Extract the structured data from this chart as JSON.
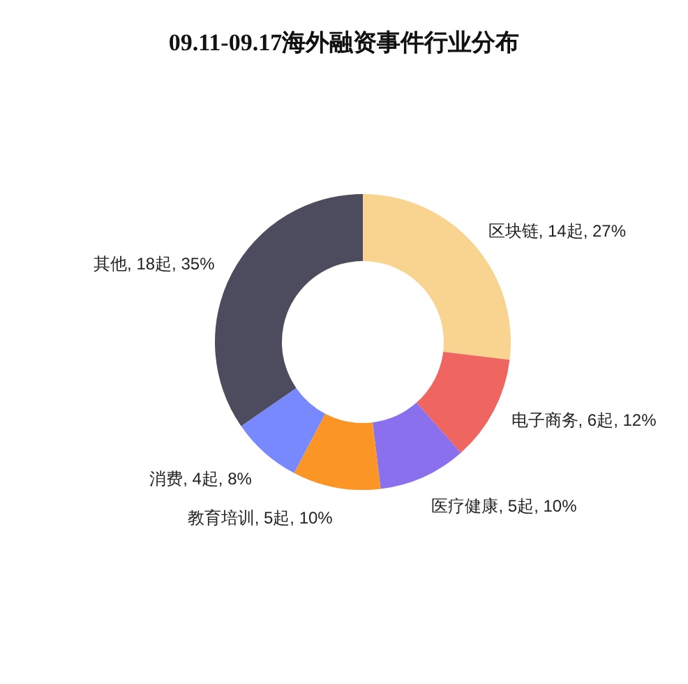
{
  "chart_data": {
    "type": "donut",
    "title": "09.11-09.17海外融资事件行业分布",
    "categories": [
      "区块链",
      "电子商务",
      "医疗健康",
      "教育培训",
      "消费",
      "其他"
    ],
    "values": [
      14,
      6,
      5,
      5,
      4,
      18
    ],
    "value_labels": [
      "14起, 27%",
      "6起, 12%",
      "5起, 10%",
      "5起, 10%",
      "4起, 8%",
      "18起, 35%"
    ],
    "colors": [
      "#f9d491",
      "#ef6661",
      "#8b70ee",
      "#fb9626",
      "#7889fd",
      "#4d4c5e"
    ],
    "legend": false
  }
}
